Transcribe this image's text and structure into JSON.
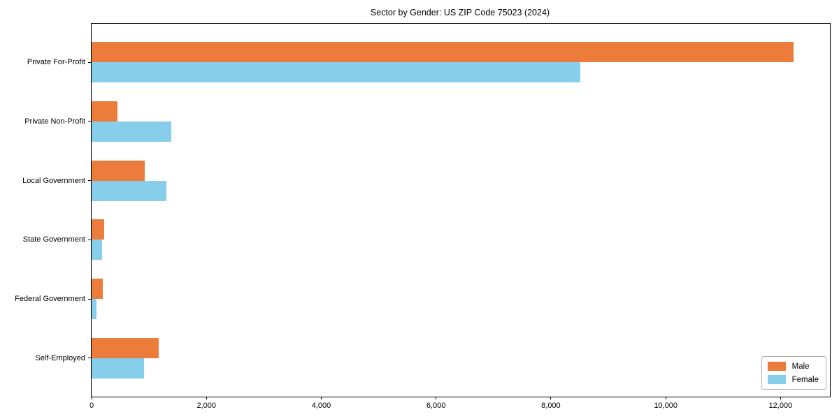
{
  "title": "Sector by Gender: US ZIP Code 75023 (2024)",
  "chart_data": {
    "type": "bar",
    "orientation": "horizontal",
    "title": "Sector by Gender: US ZIP Code 75023 (2024)",
    "categories": [
      "Private For-Profit",
      "Private Non-Profit",
      "Local Government",
      "State Government",
      "Federal Government",
      "Self-Employed"
    ],
    "series": [
      {
        "name": "Male",
        "color": "#ec7c3c",
        "values": [
          12230,
          450,
          925,
          225,
          195,
          1170
        ]
      },
      {
        "name": "Female",
        "color": "#87ceeb",
        "values": [
          8510,
          1390,
          1300,
          185,
          80,
          910
        ]
      }
    ],
    "xlabel": "",
    "ylabel": "",
    "xlim": [
      0,
      12860
    ],
    "x_ticks": [
      0,
      2000,
      4000,
      6000,
      8000,
      10000,
      12000
    ],
    "x_tick_labels": [
      "0",
      "2,000",
      "4,000",
      "6,000",
      "8,000",
      "10,000",
      "12,000"
    ],
    "grid": false,
    "legend_position": "lower right"
  }
}
